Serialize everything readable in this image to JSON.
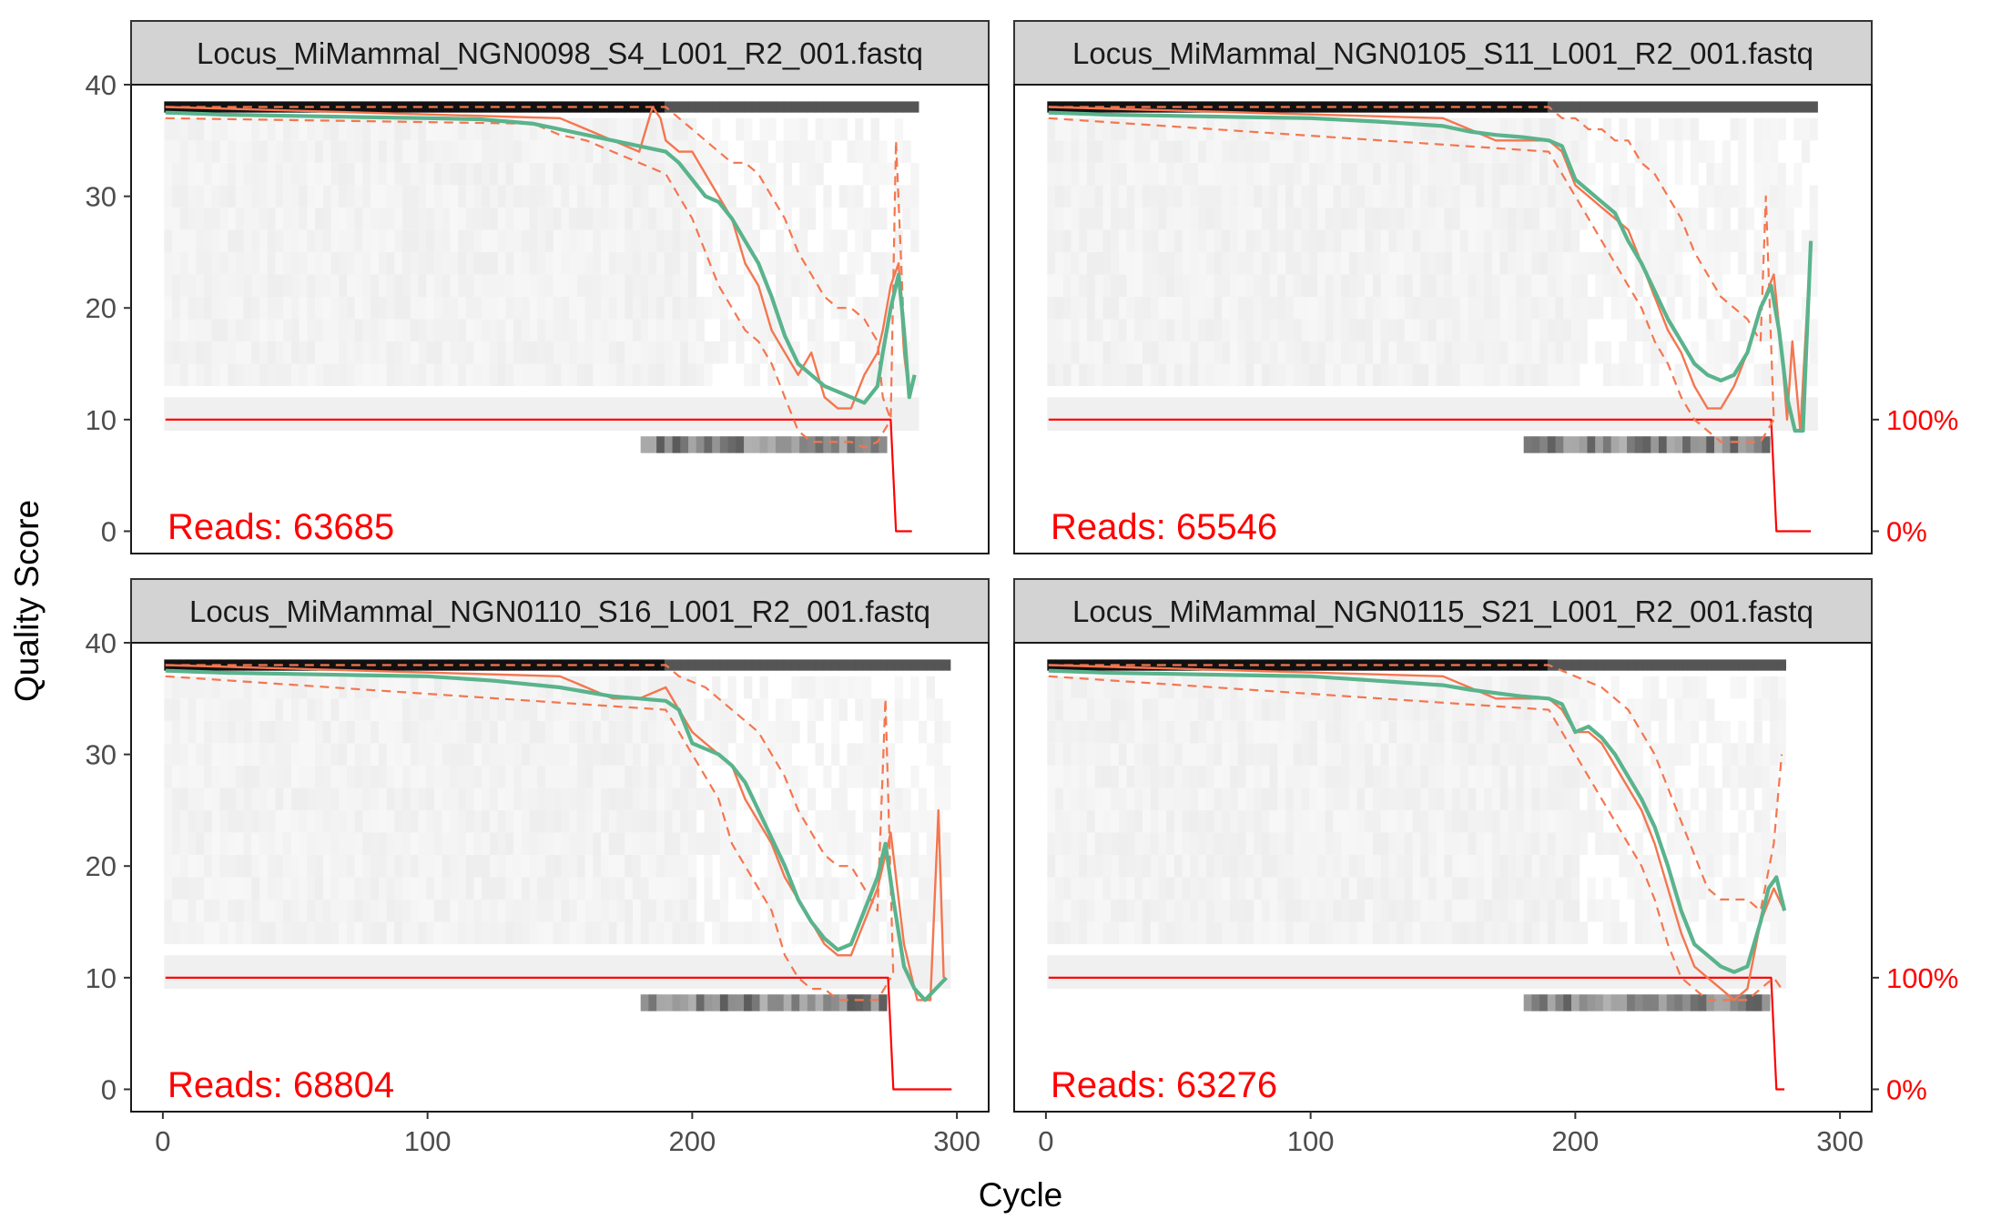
{
  "figure": {
    "ylabel": "Quality Score",
    "xlabel": "Cycle",
    "right_axis_labels": [
      "100%",
      "0%"
    ]
  },
  "colors": {
    "mean_quality": "#5ab38c",
    "quantiles": "#f4764f",
    "cumulative_reads": "#ff0000",
    "strip_fill": "#d3d3d3",
    "heatmap_low": "#f2f2f2",
    "heatmap_high": "#111111"
  },
  "chart_data": [
    {
      "type": "line",
      "title": "Locus_MiMammal_NGN0098_S4_L001_R2_001.fastq",
      "reads_label": "Reads:  63685",
      "xlabel": "Cycle",
      "ylabel": "Quality Score",
      "xlim": [
        -12,
        312
      ],
      "ylim": [
        -2,
        40
      ],
      "x_ticks": [
        0,
        100,
        200,
        300
      ],
      "y_ticks": [
        0,
        10,
        20,
        30,
        40
      ],
      "grid": false,
      "series": [
        {
          "role": "mean",
          "x": [
            1,
            25,
            50,
            75,
            100,
            120,
            140,
            150,
            160,
            170,
            180,
            190,
            195,
            200,
            205,
            210,
            215,
            220,
            225,
            230,
            235,
            240,
            245,
            250,
            255,
            260,
            265,
            270,
            272,
            275,
            278,
            280,
            282,
            284
          ],
          "y": [
            37.5,
            37.3,
            37.2,
            37.1,
            37.0,
            36.9,
            36.5,
            36.0,
            35.5,
            35.0,
            34.5,
            34.0,
            33.0,
            31.5,
            30.0,
            29.5,
            28.0,
            26.0,
            24.0,
            21.0,
            17.5,
            15.0,
            14.0,
            13.0,
            12.5,
            12.0,
            11.5,
            13.0,
            16.0,
            20.0,
            23.0,
            18.0,
            12.0,
            14.0
          ]
        },
        {
          "role": "median",
          "x": [
            1,
            150,
            160,
            170,
            180,
            185,
            188,
            190,
            195,
            200,
            205,
            210,
            215,
            220,
            225,
            230,
            235,
            240,
            245,
            250,
            255,
            260,
            265,
            270,
            272,
            275,
            278,
            280,
            282,
            284
          ],
          "y": [
            38,
            37,
            36,
            35,
            34,
            38,
            37,
            35,
            34,
            34,
            32,
            30,
            28,
            24,
            22,
            18,
            16,
            14,
            16,
            12,
            11,
            11,
            14,
            16,
            18,
            22,
            24,
            16,
            12,
            14
          ]
        },
        {
          "role": "quartile_upper",
          "x": [
            1,
            150,
            190,
            195,
            200,
            205,
            210,
            215,
            220,
            225,
            230,
            235,
            240,
            245,
            250,
            255,
            260,
            265,
            270,
            272,
            275,
            277,
            280
          ],
          "y": [
            38,
            38,
            38,
            37,
            36,
            35,
            34,
            33,
            33,
            32,
            30,
            28,
            25,
            23,
            21,
            20,
            20,
            19,
            17,
            12,
            10,
            35,
            18
          ]
        },
        {
          "role": "quartile_lower",
          "x": [
            1,
            140,
            150,
            160,
            170,
            180,
            190,
            195,
            200,
            205,
            210,
            215,
            220,
            225,
            230,
            235,
            240,
            245,
            250,
            255,
            260,
            265,
            270,
            275
          ],
          "y": [
            37,
            36.5,
            35.5,
            35,
            34,
            33,
            32,
            30,
            28,
            25,
            22,
            20,
            18,
            17,
            15,
            12,
            9,
            8,
            8,
            8,
            8,
            7.5,
            8,
            10
          ]
        },
        {
          "role": "cumulative",
          "x": [
            1,
            275,
            276,
            277,
            283
          ],
          "y": [
            10,
            10,
            5,
            0,
            0
          ]
        }
      ]
    },
    {
      "type": "line",
      "title": "Locus_MiMammal_NGN0105_S11_L001_R2_001.fastq",
      "reads_label": "Reads:  65546",
      "xlabel": "Cycle",
      "ylabel": "Quality Score",
      "xlim": [
        -12,
        312
      ],
      "ylim": [
        -2,
        40
      ],
      "x_ticks": [
        0,
        100,
        200,
        300
      ],
      "y_ticks": [
        0,
        10,
        20,
        30,
        40
      ],
      "grid": false,
      "series": [
        {
          "role": "mean",
          "x": [
            1,
            25,
            50,
            75,
            100,
            125,
            150,
            160,
            170,
            180,
            190,
            195,
            200,
            205,
            210,
            215,
            220,
            225,
            230,
            235,
            240,
            245,
            250,
            255,
            260,
            265,
            270,
            274,
            277,
            280,
            283,
            286,
            289
          ],
          "y": [
            37.5,
            37.3,
            37.2,
            37.1,
            37.0,
            36.7,
            36.3,
            35.8,
            35.5,
            35.3,
            35.0,
            34.5,
            31.5,
            30.5,
            29.5,
            28.5,
            26.0,
            24.0,
            21.5,
            19.0,
            17.0,
            15.0,
            14.0,
            13.5,
            14.0,
            16.0,
            20.0,
            22.0,
            18.0,
            12.0,
            9.0,
            9.0,
            26.0
          ]
        },
        {
          "role": "median",
          "x": [
            1,
            150,
            160,
            170,
            180,
            190,
            195,
            200,
            205,
            210,
            215,
            220,
            225,
            230,
            235,
            240,
            245,
            250,
            255,
            260,
            265,
            270,
            275,
            278,
            280,
            282,
            285,
            289
          ],
          "y": [
            38,
            37,
            36,
            35,
            35,
            35,
            34,
            31,
            30,
            29,
            28,
            27,
            24,
            21,
            18,
            16,
            13,
            11,
            11,
            13,
            16,
            20,
            23,
            16,
            10,
            17,
            9,
            26
          ]
        },
        {
          "role": "quartile_upper",
          "x": [
            1,
            190,
            195,
            200,
            205,
            210,
            215,
            220,
            225,
            230,
            235,
            240,
            245,
            250,
            255,
            260,
            265,
            270,
            272,
            275
          ],
          "y": [
            38,
            38,
            37,
            37,
            36,
            36,
            35,
            35,
            33,
            32,
            30,
            28,
            25,
            23,
            21,
            20,
            19,
            17,
            30,
            10
          ]
        },
        {
          "role": "quartile_lower",
          "x": [
            1,
            190,
            195,
            200,
            205,
            210,
            215,
            220,
            225,
            230,
            235,
            240,
            245,
            250,
            255,
            260,
            265,
            270,
            275
          ],
          "y": [
            37,
            34,
            32,
            30,
            28,
            26,
            24,
            22,
            20,
            17,
            15,
            12,
            10,
            9,
            8,
            8,
            8,
            8,
            10
          ]
        },
        {
          "role": "cumulative",
          "x": [
            1,
            274,
            275,
            276,
            289
          ],
          "y": [
            10,
            10,
            5,
            0,
            0
          ]
        }
      ]
    },
    {
      "type": "line",
      "title": "Locus_MiMammal_NGN0110_S16_L001_R2_001.fastq",
      "reads_label": "Reads:  68804",
      "xlabel": "Cycle",
      "ylabel": "Quality Score",
      "xlim": [
        -12,
        312
      ],
      "ylim": [
        -2,
        40
      ],
      "x_ticks": [
        0,
        100,
        200,
        300
      ],
      "y_ticks": [
        0,
        10,
        20,
        30,
        40
      ],
      "grid": false,
      "series": [
        {
          "role": "mean",
          "x": [
            1,
            25,
            50,
            75,
            100,
            125,
            150,
            160,
            170,
            180,
            190,
            195,
            200,
            205,
            210,
            215,
            220,
            225,
            230,
            235,
            240,
            245,
            250,
            255,
            260,
            265,
            270,
            273,
            276,
            280,
            284,
            288,
            292,
            296
          ],
          "y": [
            37.5,
            37.3,
            37.2,
            37.1,
            37.0,
            36.6,
            36.0,
            35.6,
            35.2,
            35.0,
            34.8,
            34.0,
            31.0,
            30.5,
            30.0,
            29.0,
            27.5,
            25.0,
            22.5,
            20.0,
            17.0,
            15.0,
            13.5,
            12.5,
            13.0,
            16.0,
            19.0,
            22.0,
            17.0,
            11.0,
            9.0,
            8.0,
            9.0,
            10.0
          ]
        },
        {
          "role": "median",
          "x": [
            1,
            150,
            160,
            170,
            180,
            190,
            195,
            200,
            205,
            210,
            215,
            220,
            225,
            230,
            235,
            240,
            245,
            250,
            255,
            260,
            265,
            270,
            275,
            280,
            285,
            290,
            293,
            295
          ],
          "y": [
            38,
            37,
            36,
            35,
            35,
            36,
            34,
            32,
            31,
            30,
            29,
            26,
            24,
            22,
            19,
            17,
            15,
            13,
            12,
            12,
            15,
            18,
            23,
            13,
            8,
            8,
            25,
            10
          ]
        },
        {
          "role": "quartile_upper",
          "x": [
            1,
            190,
            195,
            200,
            205,
            210,
            215,
            220,
            225,
            230,
            235,
            240,
            245,
            250,
            255,
            260,
            265,
            270,
            273,
            276
          ],
          "y": [
            38,
            38,
            37,
            36.5,
            36,
            35,
            34,
            33,
            32,
            30,
            28,
            25,
            23,
            21,
            20,
            20,
            18,
            16,
            35,
            10
          ]
        },
        {
          "role": "quartile_lower",
          "x": [
            1,
            190,
            195,
            200,
            205,
            210,
            215,
            220,
            225,
            230,
            235,
            240,
            245,
            250,
            255,
            260,
            265,
            270,
            275
          ],
          "y": [
            37,
            34,
            32,
            30,
            28,
            26,
            22,
            20,
            18,
            16,
            12,
            10,
            9,
            9,
            8,
            8,
            8,
            8,
            10
          ]
        },
        {
          "role": "cumulative",
          "x": [
            1,
            274,
            275,
            276,
            298
          ],
          "y": [
            10,
            10,
            5,
            0,
            0
          ]
        }
      ]
    },
    {
      "type": "line",
      "title": "Locus_MiMammal_NGN0115_S21_L001_R2_001.fastq",
      "reads_label": "Reads:  63276",
      "xlabel": "Cycle",
      "ylabel": "Quality Score",
      "xlim": [
        -12,
        312
      ],
      "ylim": [
        -2,
        40
      ],
      "x_ticks": [
        0,
        100,
        200,
        300
      ],
      "y_ticks": [
        0,
        10,
        20,
        30,
        40
      ],
      "grid": false,
      "series": [
        {
          "role": "mean",
          "x": [
            1,
            25,
            50,
            75,
            100,
            125,
            150,
            160,
            170,
            180,
            190,
            195,
            200,
            205,
            210,
            215,
            220,
            225,
            230,
            235,
            240,
            245,
            250,
            255,
            260,
            265,
            270,
            273,
            276,
            279
          ],
          "y": [
            37.5,
            37.3,
            37.2,
            37.1,
            37.0,
            36.6,
            36.2,
            35.8,
            35.5,
            35.2,
            35.0,
            34.5,
            32.0,
            32.5,
            31.5,
            30.0,
            28.0,
            26.0,
            23.5,
            20.0,
            16.0,
            13.0,
            12.0,
            11.0,
            10.5,
            11.0,
            15.0,
            18.0,
            19.0,
            16.0
          ]
        },
        {
          "role": "median",
          "x": [
            1,
            150,
            160,
            170,
            180,
            190,
            195,
            200,
            205,
            210,
            215,
            220,
            225,
            230,
            235,
            240,
            245,
            250,
            255,
            260,
            265,
            270,
            275,
            279
          ],
          "y": [
            38,
            37,
            36,
            35,
            35,
            35,
            34,
            32,
            32,
            31,
            29,
            27,
            25,
            22,
            18,
            14,
            11,
            10,
            9,
            8,
            9,
            15,
            18,
            16
          ]
        },
        {
          "role": "quartile_upper",
          "x": [
            1,
            190,
            195,
            200,
            205,
            210,
            215,
            220,
            225,
            230,
            235,
            240,
            245,
            250,
            255,
            260,
            265,
            270,
            275,
            278
          ],
          "y": [
            38,
            38,
            37.5,
            37,
            36.5,
            36,
            35,
            34,
            32,
            30,
            27,
            24,
            21,
            18,
            17,
            17,
            17,
            16,
            22,
            30
          ]
        },
        {
          "role": "quartile_lower",
          "x": [
            1,
            190,
            195,
            200,
            205,
            210,
            215,
            220,
            225,
            230,
            235,
            240,
            245,
            250,
            255,
            260,
            265,
            270,
            275,
            278
          ],
          "y": [
            37,
            34,
            32,
            30,
            28,
            26,
            24,
            22,
            20,
            17,
            13,
            10,
            9,
            8,
            8,
            8,
            8,
            9,
            10,
            9
          ]
        },
        {
          "role": "cumulative",
          "x": [
            1,
            274,
            275,
            276,
            279
          ],
          "y": [
            10,
            10,
            5,
            0,
            0
          ]
        }
      ]
    }
  ]
}
